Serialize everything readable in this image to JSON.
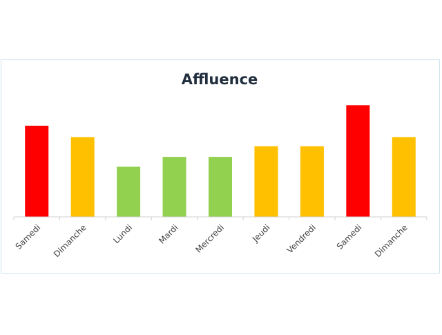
{
  "chart_data": {
    "type": "bar",
    "title": "Affluence",
    "categories": [
      "Samedi",
      "Dimanche",
      "Lundi",
      "Mardi",
      "Mercredi",
      "Jeudi",
      "Vendredi",
      "Samedi",
      "Dimanche"
    ],
    "values": [
      120,
      105,
      66,
      79,
      79,
      93,
      93,
      147,
      105
    ],
    "colors": [
      "#ff0000",
      "#ffc000",
      "#92d050",
      "#92d050",
      "#92d050",
      "#ffc000",
      "#ffc000",
      "#ff0000",
      "#ffc000"
    ],
    "ylim": [
      0,
      160
    ],
    "grid": false,
    "legend": "none"
  }
}
